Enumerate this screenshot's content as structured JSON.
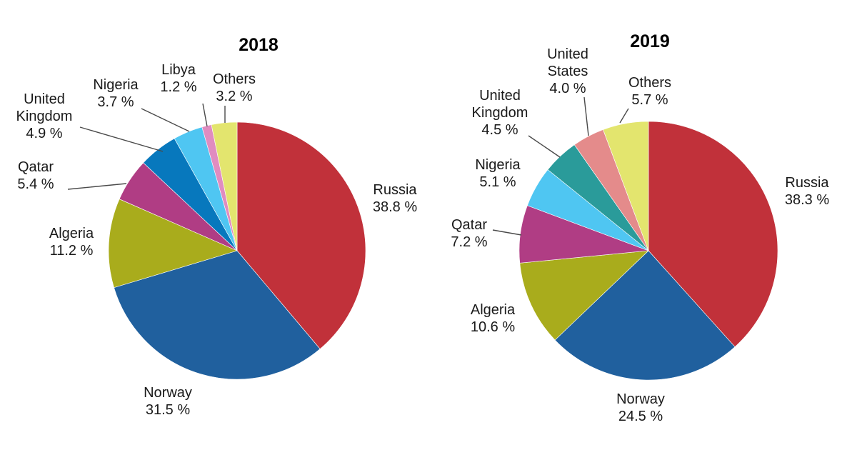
{
  "chart_data": [
    {
      "type": "pie",
      "title": "2018",
      "unit": "%",
      "slices": [
        {
          "name": "Russia",
          "value": 38.8,
          "color": "#c1313a",
          "label": "38.8 %"
        },
        {
          "name": "Norway",
          "value": 31.5,
          "color": "#20609e",
          "label": "31.5 %"
        },
        {
          "name": "Algeria",
          "value": 11.2,
          "color": "#a9ac1c",
          "label": "11.2 %"
        },
        {
          "name": "Qatar",
          "value": 5.4,
          "color": "#b03d84",
          "label": "5.4 %"
        },
        {
          "name": "United Kingdom",
          "value": 4.9,
          "color": "#0778bd",
          "label": "4.9 %",
          "name_lines": [
            "United",
            "Kingdom"
          ]
        },
        {
          "name": "Nigeria",
          "value": 3.7,
          "color": "#4fc6f2",
          "label": "3.7 %"
        },
        {
          "name": "Libya",
          "value": 1.2,
          "color": "#e08cc0",
          "label": "1.2 %"
        },
        {
          "name": "Others",
          "value": 3.2,
          "color": "#e3e56e",
          "label": "3.2 %"
        }
      ]
    },
    {
      "type": "pie",
      "title": "2019",
      "unit": "%",
      "slices": [
        {
          "name": "Russia",
          "value": 38.3,
          "color": "#c1313a",
          "label": "38.3 %"
        },
        {
          "name": "Norway",
          "value": 24.5,
          "color": "#20609e",
          "label": "24.5 %"
        },
        {
          "name": "Algeria",
          "value": 10.6,
          "color": "#a9ac1c",
          "label": "10.6 %"
        },
        {
          "name": "Qatar",
          "value": 7.2,
          "color": "#b03d84",
          "label": "7.2 %"
        },
        {
          "name": "Nigeria",
          "value": 5.1,
          "color": "#4fc6f2",
          "label": "5.1 %"
        },
        {
          "name": "United Kingdom",
          "value": 4.5,
          "color": "#2a9b9a",
          "label": "4.5 %",
          "name_lines": [
            "United",
            "Kingdom"
          ]
        },
        {
          "name": "United States",
          "value": 4.0,
          "color": "#e48b8b",
          "label": "4.0 %",
          "name_lines": [
            "United",
            "States"
          ]
        },
        {
          "name": "Others",
          "value": 5.7,
          "color": "#e3e56e",
          "label": "5.7 %"
        }
      ]
    }
  ]
}
